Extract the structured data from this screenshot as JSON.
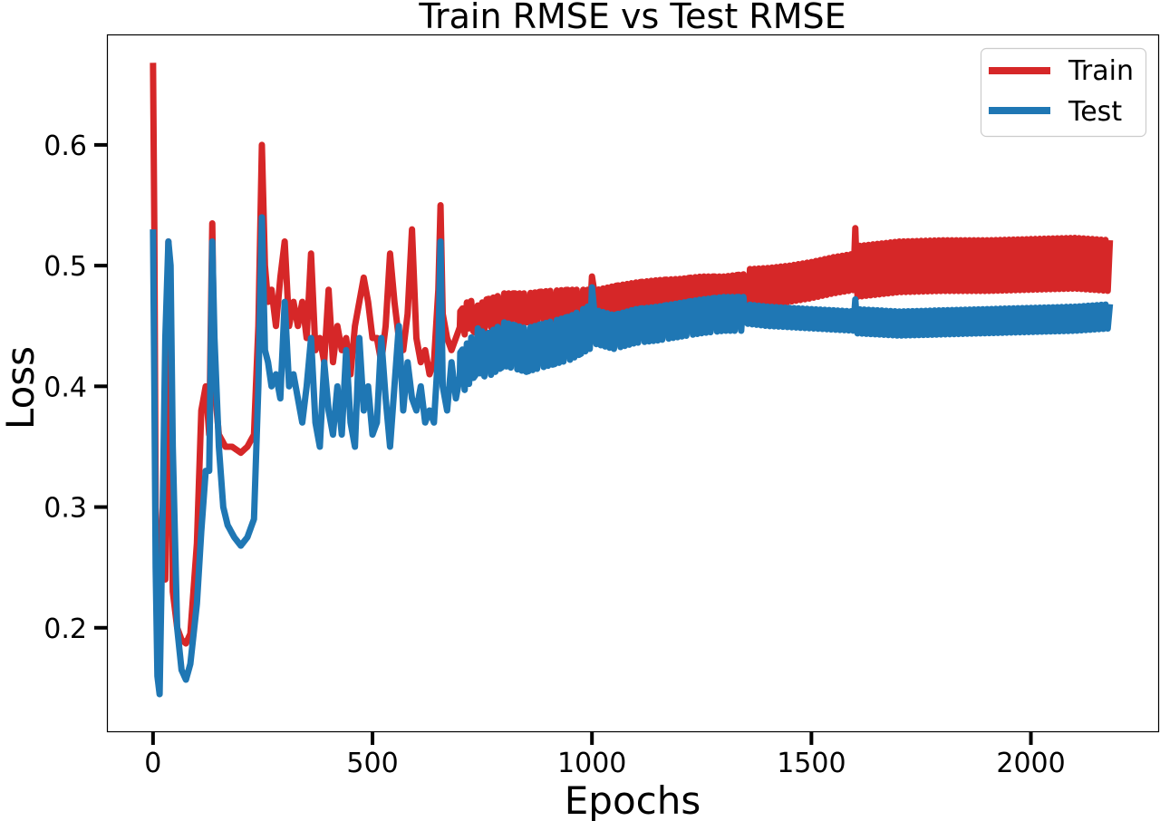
{
  "chart_data": {
    "type": "line",
    "title": "Train RMSE vs Test RMSE",
    "xlabel": "Epochs",
    "ylabel": "Loss",
    "xlim": [
      -105,
      2290
    ],
    "ylim": [
      0.1135,
      0.6915
    ],
    "xticks": [
      0,
      500,
      1000,
      1500,
      2000
    ],
    "yticks": [
      0.2,
      0.3,
      0.4,
      0.5,
      0.6
    ],
    "xtick_labels": [
      "0",
      "500",
      "1000",
      "1500",
      "2000"
    ],
    "ytick_labels": [
      "0.2",
      "0.3",
      "0.4",
      "0.5",
      "0.6"
    ],
    "grid": false,
    "legend_position": "top-right",
    "series": [
      {
        "name": "Train",
        "color": "#d62728",
        "oscillation": [
          {
            "from": 700,
            "to": 1000,
            "amplitude": 0.012,
            "period": 12
          },
          {
            "from": 1000,
            "to": 1350,
            "amplitude": 0.011,
            "period": 11
          },
          {
            "from": 1350,
            "to": 1600,
            "amplitude": 0.015,
            "period": 10
          },
          {
            "from": 1600,
            "to": 2180,
            "amplitude": 0.021,
            "period": 10
          }
        ],
        "x": [
          0,
          3,
          6,
          10,
          15,
          20,
          28,
          35,
          45,
          55,
          65,
          75,
          85,
          100,
          110,
          120,
          128,
          135,
          140,
          150,
          165,
          180,
          200,
          215,
          230,
          240,
          248,
          255,
          262,
          270,
          280,
          290,
          300,
          310,
          320,
          330,
          340,
          350,
          360,
          370,
          380,
          390,
          400,
          410,
          420,
          430,
          440,
          450,
          460,
          470,
          480,
          490,
          500,
          510,
          520,
          530,
          540,
          550,
          560,
          570,
          580,
          590,
          600,
          610,
          620,
          630,
          640,
          650,
          655,
          660,
          670,
          680,
          690,
          700,
          720,
          740,
          760,
          780,
          800,
          850,
          900,
          950,
          1000,
          1050,
          1100,
          1150,
          1200,
          1250,
          1300,
          1350,
          1400,
          1450,
          1500,
          1550,
          1600,
          1650,
          1700,
          1800,
          1900,
          2000,
          2100,
          2180
        ],
        "y": [
          0.668,
          0.53,
          0.3,
          0.27,
          0.25,
          0.28,
          0.24,
          0.52,
          0.23,
          0.2,
          0.19,
          0.187,
          0.195,
          0.27,
          0.38,
          0.4,
          0.36,
          0.535,
          0.4,
          0.36,
          0.35,
          0.35,
          0.345,
          0.35,
          0.36,
          0.45,
          0.6,
          0.5,
          0.47,
          0.48,
          0.45,
          0.49,
          0.52,
          0.45,
          0.47,
          0.45,
          0.47,
          0.44,
          0.51,
          0.43,
          0.44,
          0.42,
          0.48,
          0.42,
          0.45,
          0.43,
          0.44,
          0.41,
          0.45,
          0.47,
          0.49,
          0.47,
          0.44,
          0.44,
          0.42,
          0.45,
          0.51,
          0.47,
          0.44,
          0.43,
          0.46,
          0.53,
          0.44,
          0.42,
          0.43,
          0.41,
          0.42,
          0.48,
          0.55,
          0.46,
          0.44,
          0.43,
          0.44,
          0.45,
          0.46,
          0.455,
          0.46,
          0.462,
          0.465,
          0.465,
          0.467,
          0.468,
          0.468,
          0.472,
          0.475,
          0.477,
          0.478,
          0.48,
          0.48,
          0.482,
          0.483,
          0.485,
          0.488,
          0.492,
          0.495,
          0.497,
          0.499,
          0.5,
          0.5,
          0.501,
          0.502,
          0.5
        ]
      },
      {
        "name": "Test",
        "color": "#1f77b4",
        "oscillation": [
          {
            "from": 700,
            "to": 1000,
            "amplitude": 0.018,
            "period": 12
          },
          {
            "from": 1000,
            "to": 1350,
            "amplitude": 0.014,
            "period": 11
          },
          {
            "from": 1350,
            "to": 1600,
            "amplitude": 0.008,
            "period": 10
          },
          {
            "from": 1600,
            "to": 2180,
            "amplitude": 0.01,
            "period": 10
          }
        ],
        "x": [
          0,
          3,
          6,
          10,
          15,
          20,
          28,
          35,
          40,
          45,
          55,
          65,
          75,
          85,
          100,
          110,
          120,
          128,
          135,
          140,
          150,
          160,
          170,
          185,
          200,
          215,
          230,
          240,
          248,
          255,
          262,
          270,
          280,
          290,
          300,
          310,
          320,
          330,
          340,
          350,
          360,
          370,
          380,
          390,
          400,
          410,
          420,
          430,
          440,
          450,
          460,
          470,
          480,
          490,
          500,
          510,
          520,
          530,
          540,
          550,
          560,
          570,
          580,
          590,
          600,
          610,
          620,
          630,
          640,
          650,
          655,
          660,
          670,
          680,
          690,
          700,
          720,
          740,
          760,
          780,
          800,
          850,
          900,
          950,
          1000,
          1050,
          1100,
          1150,
          1200,
          1250,
          1300,
          1350,
          1400,
          1450,
          1500,
          1550,
          1600,
          1700,
          1800,
          1900,
          2000,
          2100,
          2180
        ],
        "y": [
          0.53,
          0.4,
          0.25,
          0.16,
          0.145,
          0.25,
          0.44,
          0.52,
          0.5,
          0.35,
          0.2,
          0.165,
          0.157,
          0.17,
          0.22,
          0.28,
          0.33,
          0.33,
          0.52,
          0.44,
          0.35,
          0.3,
          0.285,
          0.275,
          0.268,
          0.275,
          0.29,
          0.4,
          0.54,
          0.43,
          0.42,
          0.4,
          0.41,
          0.39,
          0.47,
          0.4,
          0.41,
          0.39,
          0.37,
          0.4,
          0.44,
          0.37,
          0.35,
          0.42,
          0.38,
          0.36,
          0.4,
          0.36,
          0.43,
          0.37,
          0.35,
          0.44,
          0.38,
          0.4,
          0.36,
          0.37,
          0.44,
          0.39,
          0.35,
          0.4,
          0.45,
          0.38,
          0.42,
          0.39,
          0.38,
          0.4,
          0.37,
          0.38,
          0.37,
          0.43,
          0.52,
          0.4,
          0.38,
          0.42,
          0.39,
          0.41,
          0.42,
          0.43,
          0.425,
          0.43,
          0.435,
          0.43,
          0.435,
          0.44,
          0.45,
          0.445,
          0.45,
          0.452,
          0.455,
          0.458,
          0.46,
          0.46,
          0.458,
          0.457,
          0.456,
          0.455,
          0.454,
          0.452,
          0.453,
          0.454,
          0.455,
          0.456,
          0.458
        ]
      }
    ]
  }
}
